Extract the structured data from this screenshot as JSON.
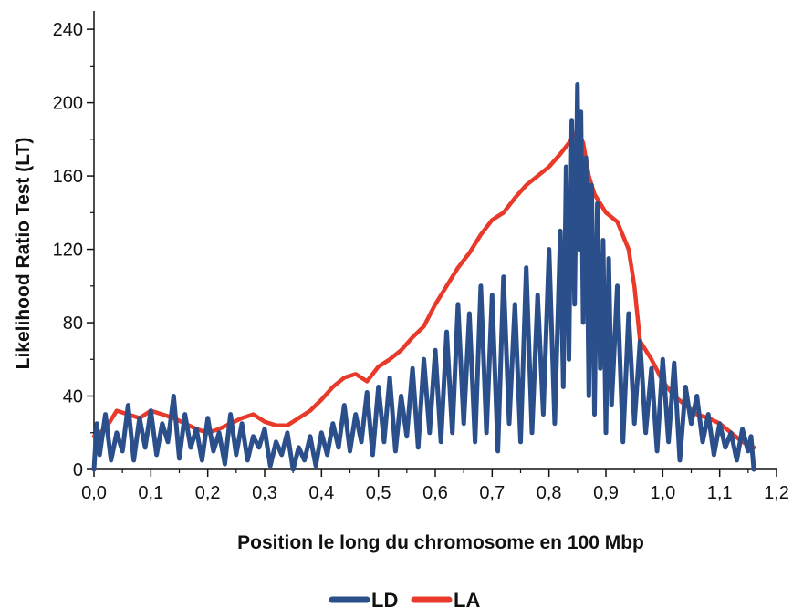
{
  "chart_data": {
    "type": "line",
    "title": "",
    "xlabel": "Position le long du chromosome en 100 Mbp",
    "ylabel": "Likelihood Ratio Test (LT)",
    "xlim": [
      0.0,
      1.2
    ],
    "ylim": [
      0,
      250
    ],
    "x_ticks": [
      "0,0",
      "0,1",
      "0,2",
      "0,3",
      "0,4",
      "0,5",
      "0,6",
      "0,7",
      "0,8",
      "0,9",
      "1,0",
      "1,1",
      "1,2"
    ],
    "y_ticks": [
      "0",
      "40",
      "80",
      "120",
      "160",
      "200",
      "240"
    ],
    "grid": false,
    "legend_position": "bottom-center",
    "series": [
      {
        "name": "LD",
        "color": "#2a4f8a",
        "x": [
          0.0,
          0.005,
          0.01,
          0.02,
          0.03,
          0.04,
          0.05,
          0.06,
          0.07,
          0.08,
          0.09,
          0.1,
          0.11,
          0.12,
          0.13,
          0.14,
          0.15,
          0.16,
          0.17,
          0.18,
          0.19,
          0.2,
          0.21,
          0.22,
          0.23,
          0.24,
          0.25,
          0.26,
          0.27,
          0.28,
          0.29,
          0.3,
          0.31,
          0.32,
          0.33,
          0.34,
          0.35,
          0.36,
          0.37,
          0.38,
          0.39,
          0.4,
          0.41,
          0.42,
          0.43,
          0.44,
          0.45,
          0.46,
          0.47,
          0.48,
          0.49,
          0.5,
          0.51,
          0.52,
          0.53,
          0.54,
          0.55,
          0.56,
          0.57,
          0.58,
          0.59,
          0.6,
          0.61,
          0.62,
          0.63,
          0.64,
          0.65,
          0.66,
          0.67,
          0.68,
          0.69,
          0.7,
          0.71,
          0.72,
          0.73,
          0.74,
          0.75,
          0.76,
          0.77,
          0.78,
          0.79,
          0.8,
          0.81,
          0.82,
          0.825,
          0.83,
          0.835,
          0.84,
          0.845,
          0.85,
          0.853,
          0.856,
          0.86,
          0.865,
          0.87,
          0.875,
          0.88,
          0.885,
          0.89,
          0.895,
          0.9,
          0.905,
          0.91,
          0.92,
          0.93,
          0.94,
          0.95,
          0.96,
          0.97,
          0.98,
          0.99,
          1.0,
          1.01,
          1.02,
          1.03,
          1.04,
          1.05,
          1.06,
          1.07,
          1.08,
          1.09,
          1.1,
          1.11,
          1.12,
          1.13,
          1.14,
          1.15,
          1.155,
          1.16
        ],
        "y": [
          0,
          25,
          8,
          30,
          5,
          20,
          10,
          35,
          5,
          28,
          12,
          32,
          8,
          25,
          15,
          40,
          6,
          30,
          12,
          22,
          5,
          28,
          10,
          20,
          3,
          30,
          8,
          25,
          5,
          18,
          12,
          22,
          2,
          15,
          8,
          20,
          0,
          12,
          5,
          18,
          2,
          20,
          8,
          25,
          12,
          35,
          10,
          30,
          15,
          42,
          8,
          45,
          15,
          50,
          10,
          40,
          18,
          55,
          12,
          60,
          20,
          65,
          15,
          75,
          20,
          90,
          25,
          85,
          15,
          100,
          20,
          95,
          10,
          105,
          25,
          90,
          15,
          110,
          20,
          95,
          30,
          120,
          25,
          130,
          45,
          165,
          60,
          190,
          90,
          210,
          120,
          195,
          80,
          170,
          40,
          155,
          30,
          145,
          55,
          125,
          20,
          115,
          35,
          100,
          15,
          85,
          25,
          70,
          20,
          55,
          10,
          60,
          15,
          58,
          5,
          45,
          25,
          40,
          15,
          30,
          8,
          25,
          12,
          20,
          5,
          22,
          10,
          18,
          0
        ],
        "noise_note": ""
      },
      {
        "name": "LA",
        "color": "#e8392a",
        "x": [
          0.0,
          0.02,
          0.04,
          0.06,
          0.08,
          0.1,
          0.12,
          0.14,
          0.16,
          0.18,
          0.2,
          0.22,
          0.24,
          0.26,
          0.28,
          0.3,
          0.32,
          0.34,
          0.36,
          0.38,
          0.4,
          0.42,
          0.44,
          0.46,
          0.48,
          0.5,
          0.52,
          0.54,
          0.56,
          0.58,
          0.6,
          0.62,
          0.64,
          0.66,
          0.68,
          0.7,
          0.72,
          0.74,
          0.76,
          0.78,
          0.8,
          0.82,
          0.84,
          0.85,
          0.86,
          0.87,
          0.88,
          0.9,
          0.92,
          0.94,
          0.95,
          0.96,
          0.98,
          1.0,
          1.02,
          1.04,
          1.06,
          1.08,
          1.1,
          1.12,
          1.14,
          1.16
        ],
        "y": [
          18,
          22,
          32,
          30,
          28,
          32,
          30,
          28,
          25,
          22,
          20,
          22,
          25,
          28,
          30,
          26,
          24,
          24,
          28,
          32,
          38,
          45,
          50,
          52,
          48,
          56,
          60,
          65,
          72,
          78,
          90,
          100,
          110,
          118,
          128,
          136,
          140,
          148,
          155,
          160,
          165,
          172,
          180,
          185,
          178,
          160,
          150,
          140,
          135,
          120,
          100,
          70,
          60,
          48,
          40,
          35,
          30,
          28,
          25,
          20,
          15,
          12
        ]
      }
    ]
  }
}
